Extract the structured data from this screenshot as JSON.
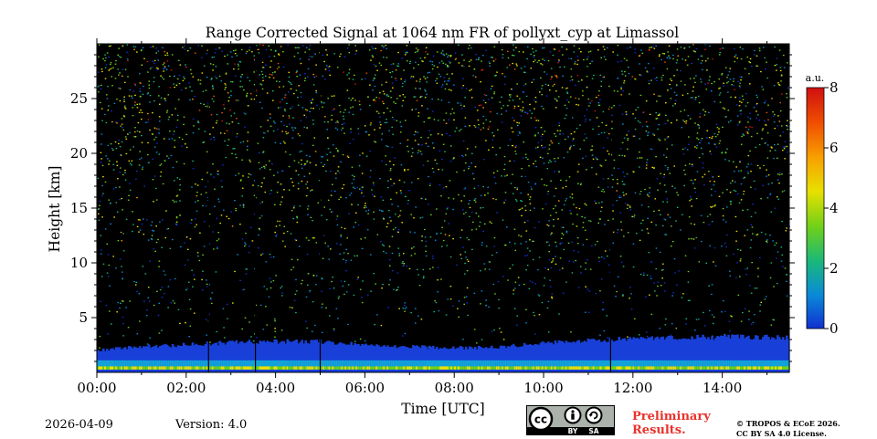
{
  "chart_data": {
    "type": "heatmap",
    "title": "Range Corrected Signal at 1064 nm FR of pollyxt_cyp at Limassol",
    "xlabel": "Time [UTC]",
    "ylabel": "Height [km]",
    "xlim_hours": [
      0,
      15.5
    ],
    "ylim_km": [
      0,
      30
    ],
    "x_ticks": [
      {
        "value": 0,
        "label": "00:00"
      },
      {
        "value": 2,
        "label": "02:00"
      },
      {
        "value": 4,
        "label": "04:00"
      },
      {
        "value": 6,
        "label": "06:00"
      },
      {
        "value": 8,
        "label": "08:00"
      },
      {
        "value": 10,
        "label": "10:00"
      },
      {
        "value": 12,
        "label": "12:00"
      },
      {
        "value": 14,
        "label": "14:00"
      }
    ],
    "y_ticks": [
      {
        "value": 5,
        "label": "5"
      },
      {
        "value": 10,
        "label": "10"
      },
      {
        "value": 15,
        "label": "15"
      },
      {
        "value": 20,
        "label": "20"
      },
      {
        "value": 25,
        "label": "25"
      }
    ],
    "colorbar": {
      "unit": "a.u.",
      "range": [
        0,
        8
      ],
      "ticks": [
        {
          "value": 0,
          "label": "0"
        },
        {
          "value": 2,
          "label": "2"
        },
        {
          "value": 4,
          "label": "4"
        },
        {
          "value": 6,
          "label": "6"
        },
        {
          "value": 8,
          "label": "8"
        }
      ],
      "colors": [
        "#1030d0",
        "#0a8ad8",
        "#1ab87a",
        "#6ed01a",
        "#e8e000",
        "#f8a000",
        "#f05000",
        "#d01010"
      ]
    },
    "aerosol_layer": {
      "top_km": [
        [
          0,
          2.1
        ],
        [
          1,
          2.4
        ],
        [
          2,
          2.6
        ],
        [
          3,
          2.8
        ],
        [
          4,
          2.9
        ],
        [
          5,
          2.9
        ],
        [
          6,
          2.6
        ],
        [
          7,
          2.4
        ],
        [
          8,
          2.3
        ],
        [
          9,
          2.4
        ],
        [
          10,
          2.8
        ],
        [
          11,
          3.0
        ],
        [
          12,
          3.2
        ],
        [
          13,
          3.3
        ],
        [
          14,
          3.3
        ],
        [
          15,
          3.3
        ],
        [
          15.5,
          3.3
        ]
      ]
    },
    "data_gaps_hours": [
      2.5,
      3.55,
      5.0,
      11.5
    ]
  },
  "footer": {
    "date": "2026-04-09",
    "version": "Version: 4.0",
    "preliminary_line1": "Preliminary",
    "preliminary_line2": "Results.",
    "copyright_line1": "© TROPOS & ECoE 2026.",
    "copyright_line2": "CC BY SA 4.0 License.",
    "license_by": "BY",
    "license_sa": "SA"
  }
}
